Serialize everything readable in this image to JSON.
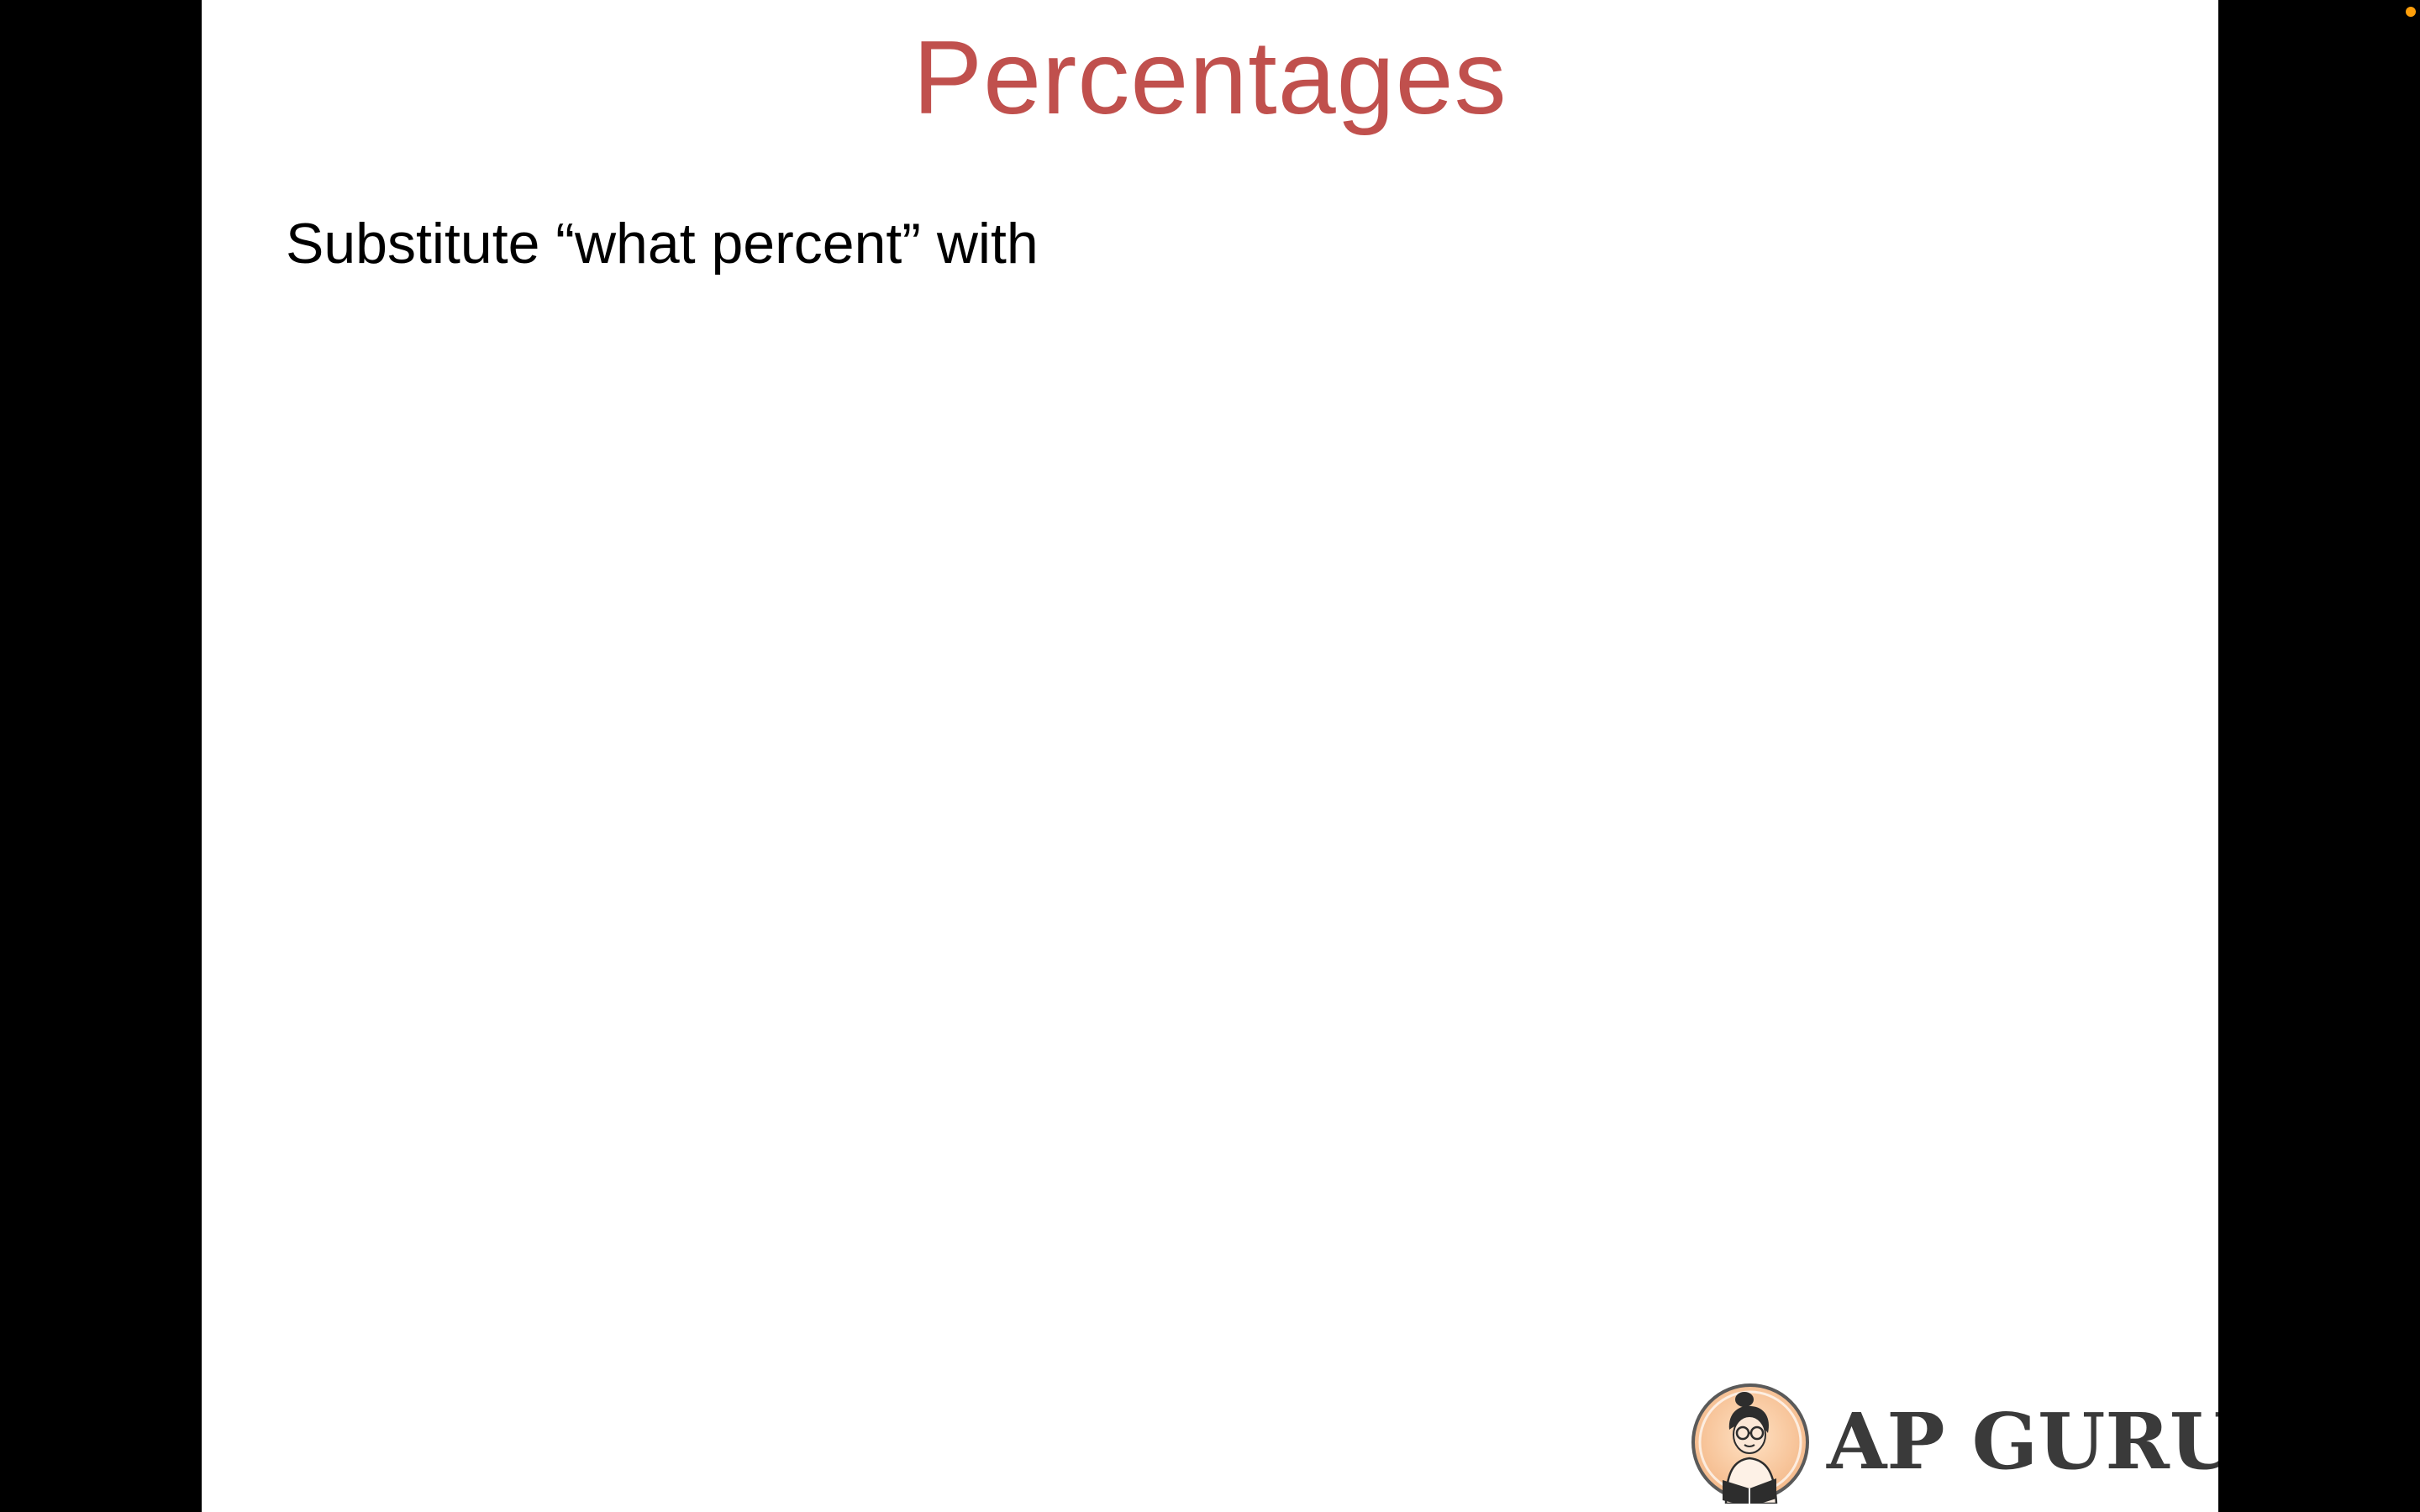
{
  "slide": {
    "title": "Percentages",
    "body_text": "Substitute “what percent” with"
  },
  "logo": {
    "text": "AP GURU",
    "icon": "reading-person-icon"
  },
  "status": {
    "indicator_icon": "recording-dot-icon",
    "indicator_color": "#ff9f0a"
  },
  "colors": {
    "title": "#c0504d",
    "background": "#ffffff",
    "letterbox": "#000000"
  }
}
